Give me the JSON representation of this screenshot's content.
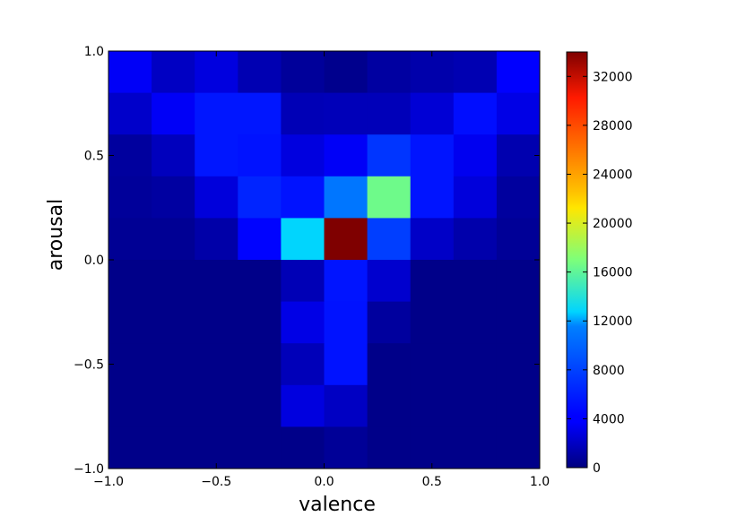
{
  "chart_data": {
    "type": "heatmap",
    "xlabel": "valence",
    "ylabel": "arousal",
    "xlim": [
      -1.0,
      1.0
    ],
    "ylim": [
      -1.0,
      1.0
    ],
    "x_bins": 10,
    "y_bins": 10,
    "x_ticks": [
      -1.0,
      -0.5,
      0.0,
      0.5,
      1.0
    ],
    "x_tick_labels": [
      "−1.0",
      "−0.5",
      "0.0",
      "0.5",
      "1.0"
    ],
    "y_ticks": [
      -1.0,
      -0.5,
      0.0,
      0.5,
      1.0
    ],
    "y_tick_labels": [
      "−1.0",
      "−0.5",
      "0.0",
      "0.5",
      "1.0"
    ],
    "colormap": "jet",
    "color_range": [
      0,
      34000
    ],
    "colorbar_ticks": [
      0,
      4000,
      8000,
      12000,
      16000,
      20000,
      24000,
      28000,
      32000
    ],
    "colorbar_tick_labels": [
      "0",
      "4000",
      "8000",
      "12000",
      "16000",
      "20000",
      "24000",
      "28000",
      "32000"
    ],
    "row_order": "top-to-bottom (arousal 1.0 down to -1.0); columns left-to-right (valence -1.0 to 1.0)",
    "values": [
      [
        3500,
        2000,
        2800,
        1500,
        800,
        400,
        1000,
        1300,
        1500,
        3800
      ],
      [
        2200,
        3500,
        5500,
        5500,
        1600,
        1700,
        1700,
        2500,
        5000,
        3000
      ],
      [
        900,
        1800,
        5500,
        5300,
        2800,
        3500,
        7300,
        5400,
        3300,
        1400
      ],
      [
        800,
        1000,
        2700,
        6300,
        5300,
        11000,
        16500,
        5400,
        2700,
        900
      ],
      [
        600,
        600,
        1200,
        4400,
        12800,
        34000,
        7800,
        2100,
        1300,
        700
      ],
      [
        300,
        300,
        300,
        300,
        1600,
        5400,
        2300,
        300,
        300,
        300
      ],
      [
        300,
        300,
        300,
        300,
        3000,
        5300,
        900,
        300,
        300,
        300
      ],
      [
        300,
        300,
        300,
        300,
        1700,
        5300,
        300,
        300,
        300,
        300
      ],
      [
        300,
        300,
        300,
        300,
        2800,
        2000,
        300,
        300,
        300,
        300
      ],
      [
        300,
        300,
        300,
        300,
        300,
        700,
        300,
        300,
        300,
        300
      ]
    ]
  }
}
